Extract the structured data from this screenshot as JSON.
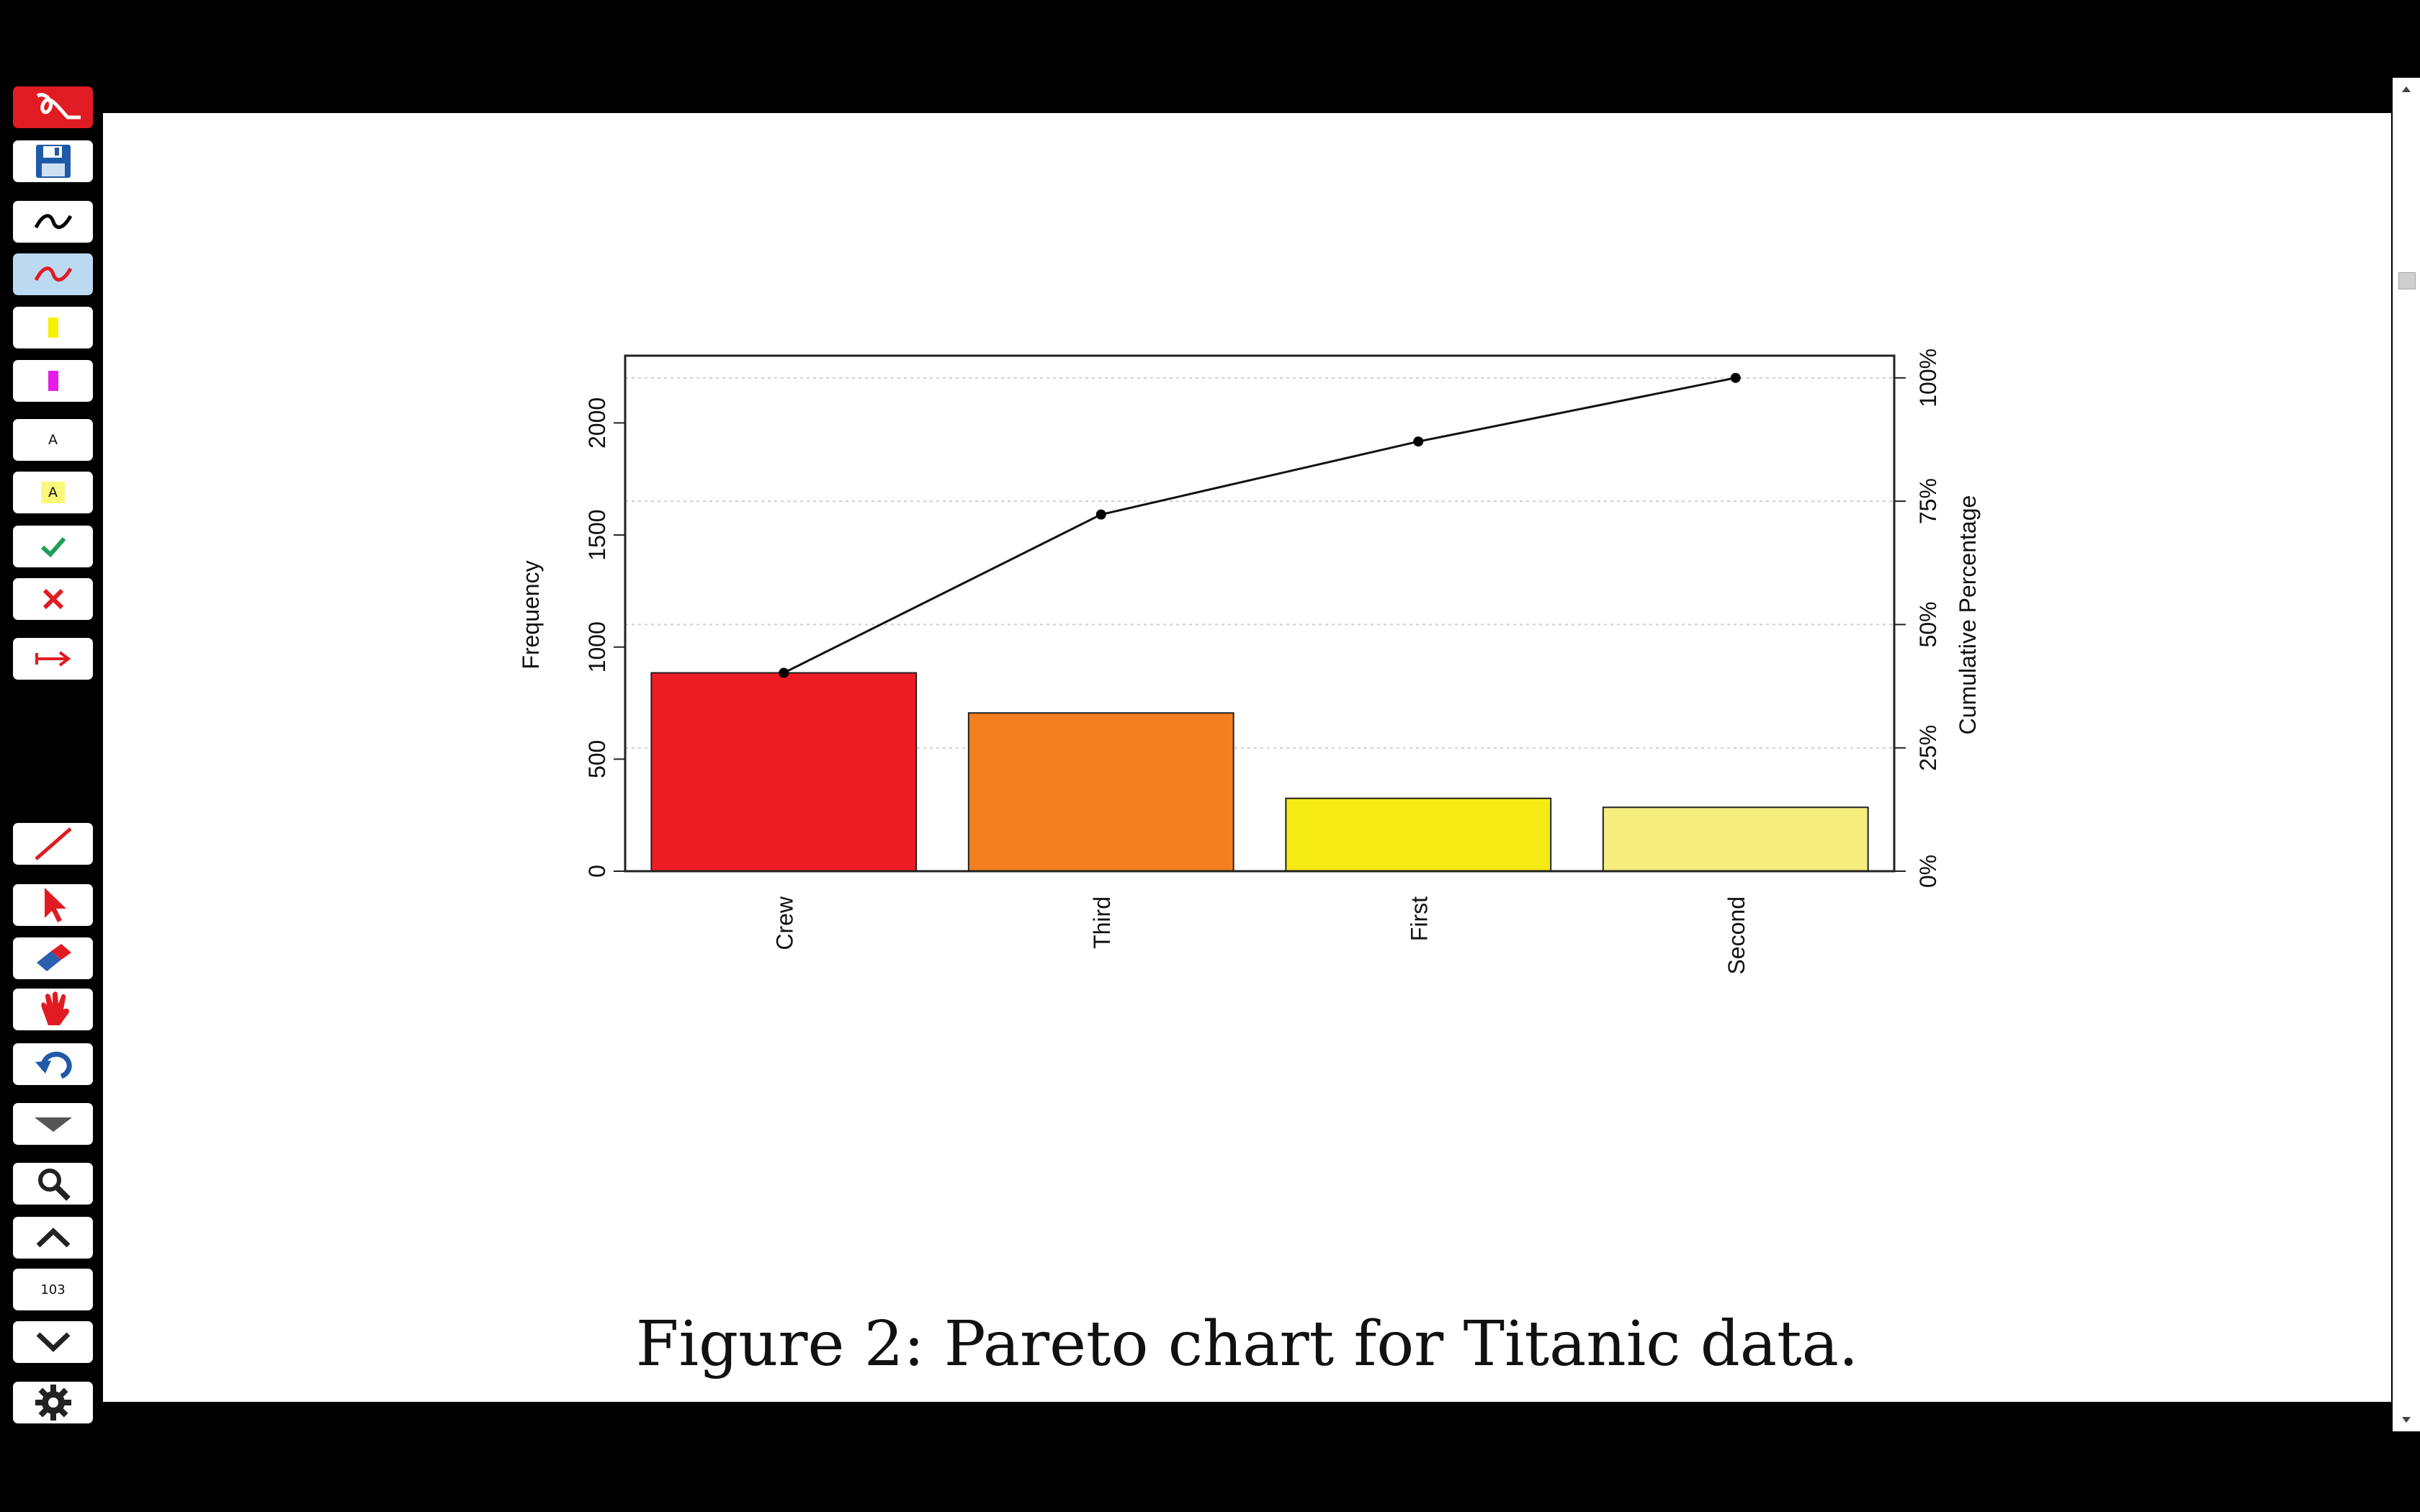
{
  "toolbar": {
    "buttons": [
      {
        "name": "app-logo",
        "icon": "acrobat-logo-icon"
      },
      {
        "name": "save",
        "icon": "floppy-disk-icon"
      },
      {
        "name": "pen-black",
        "icon": "pen-black-icon"
      },
      {
        "name": "pen-red",
        "icon": "pen-red-icon"
      },
      {
        "name": "highlighter-yellow",
        "icon": "highlighter-yellow-icon"
      },
      {
        "name": "highlighter-magenta",
        "icon": "highlighter-magenta-icon"
      },
      {
        "name": "text-box",
        "icon": "text-box-icon",
        "label": "A"
      },
      {
        "name": "text-highlight",
        "icon": "text-highlight-icon",
        "label": "A"
      },
      {
        "name": "check-mark",
        "icon": "check-icon"
      },
      {
        "name": "cross-mark",
        "icon": "cross-icon"
      },
      {
        "name": "arrow-stamp",
        "icon": "arrow-right-icon"
      },
      {
        "name": "line-tool",
        "icon": "line-icon"
      },
      {
        "name": "select-tool",
        "icon": "pointer-icon"
      },
      {
        "name": "eraser",
        "icon": "eraser-icon"
      },
      {
        "name": "pan-hand",
        "icon": "hand-icon"
      },
      {
        "name": "undo",
        "icon": "undo-icon"
      },
      {
        "name": "dropdown",
        "icon": "chevron-down-icon"
      },
      {
        "name": "search",
        "icon": "magnifier-icon"
      },
      {
        "name": "page-up",
        "icon": "chevron-up-icon"
      },
      {
        "name": "page-number",
        "icon": "page-number",
        "label": "103"
      },
      {
        "name": "page-down",
        "icon": "chevron-down-icon"
      },
      {
        "name": "settings",
        "icon": "gear-icon"
      }
    ]
  },
  "colors": {
    "logo": "#e11b22",
    "bars": [
      "#ed1c24",
      "#f47f20",
      "#f5ea14",
      "#f5ee7f"
    ],
    "active_tool": "#bcd9f2"
  },
  "chart_data": {
    "type": "bar",
    "categories": [
      "Crew",
      "Third",
      "First",
      "Second"
    ],
    "values": [
      885,
      706,
      325,
      285
    ],
    "cumulative_percent": [
      40.2,
      72.3,
      87.1,
      100
    ],
    "ylabel": "Frequency",
    "y2label": "Cumulative Percentage",
    "ylim": [
      0,
      2300
    ],
    "yticks": [
      "0",
      "500",
      "1000",
      "1500",
      "2000"
    ],
    "y2ticks": [
      "0%",
      "25%",
      "50%",
      "75%",
      "100%"
    ],
    "grid": true
  },
  "caption": "Figure 2: Pareto chart for Titanic data."
}
